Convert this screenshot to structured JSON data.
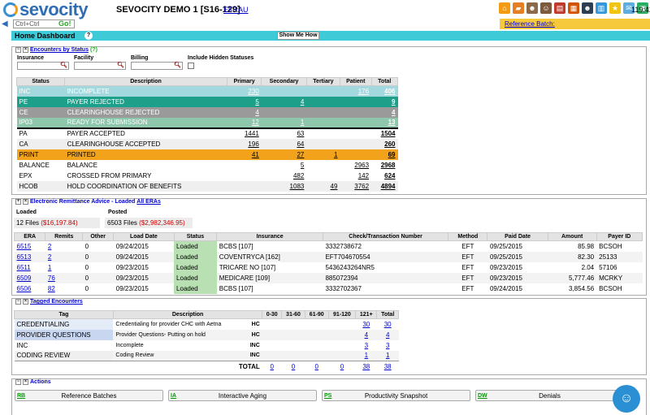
{
  "app": {
    "logo": "sevocity",
    "company": "SEVOCITY DEMO 1 [S16-129]",
    "user_link": "EFRAU",
    "clock": "119:42"
  },
  "search": {
    "value": "Ctrl+Ctrl",
    "go": "Go!"
  },
  "ref_batch": "Reference Batch:",
  "header": {
    "title": "Home Dashboard",
    "help": "?",
    "show_me": "Show Me How"
  },
  "encounters": {
    "title": "Encounters by Status",
    "help": "(?)",
    "filters": {
      "insurance": "Insurance",
      "facility": "Facility",
      "billing": "Billing",
      "hidden": "Include Hidden Statuses"
    },
    "columns": [
      "Status",
      "Description",
      "Primary",
      "Secondary",
      "Tertiary",
      "Patient",
      "Total"
    ],
    "rows": [
      {
        "status": "INC",
        "desc": "INCOMPLETE",
        "primary": "230",
        "secondary": "",
        "tertiary": "",
        "patient": "176",
        "total": "406",
        "bg": "#a3d9de",
        "fg": "#fff"
      },
      {
        "status": "PE",
        "desc": "PAYER REJECTED",
        "primary": "5",
        "secondary": "4",
        "tertiary": "",
        "patient": "",
        "total": "9",
        "bg": "#1e9f8a",
        "fg": "#fff"
      },
      {
        "status": "CE",
        "desc": "CLEARINGHOUSE REJECTED",
        "primary": "4",
        "secondary": "",
        "tertiary": "",
        "patient": "",
        "total": "4",
        "bg": "#9a9a9a",
        "fg": "#fff"
      },
      {
        "status": "IP03",
        "desc": "READY FOR SUBMISSION",
        "primary": "12",
        "secondary": "1",
        "tertiary": "",
        "patient": "",
        "total": "13",
        "bg": "#8fc7ad",
        "fg": "#fff"
      },
      {
        "status": "PA",
        "desc": "PAYER ACCEPTED",
        "primary": "1441",
        "secondary": "63",
        "tertiary": "",
        "patient": "",
        "total": "1504",
        "bg": "#fff",
        "fg": "#000"
      },
      {
        "status": "CA",
        "desc": "CLEARINGHOUSE ACCEPTED",
        "primary": "196",
        "secondary": "64",
        "tertiary": "",
        "patient": "",
        "total": "260",
        "bg": "#efefef",
        "fg": "#000"
      },
      {
        "status": "PRINT",
        "desc": "PRINTED",
        "primary": "41",
        "secondary": "27",
        "tertiary": "1",
        "patient": "",
        "total": "69",
        "bg": "#f2a31b",
        "fg": "#000"
      },
      {
        "status": "BALANCE",
        "desc": "BALANCE",
        "primary": "",
        "secondary": "5",
        "tertiary": "",
        "patient": "2963",
        "total": "2968",
        "bg": "#fff",
        "fg": "#000"
      },
      {
        "status": "EPX",
        "desc": "CROSSED FROM PRIMARY",
        "primary": "",
        "secondary": "482",
        "tertiary": "",
        "patient": "142",
        "total": "624",
        "bg": "#fff",
        "fg": "#000"
      },
      {
        "status": "HCOB",
        "desc": "HOLD COORDINATION OF BENEFITS",
        "primary": "",
        "secondary": "1083",
        "tertiary": "49",
        "patient": "3762",
        "total": "4894",
        "bg": "#efefef",
        "fg": "#000"
      }
    ]
  },
  "era": {
    "title": "Electronic Remittance Advice - Loaded",
    "all_link": "All ERAs",
    "loaded_label": "Loaded",
    "posted_label": "Posted",
    "loaded_files": "12 Files",
    "loaded_amount": "($16,197.84)",
    "posted_files": "6503 Files",
    "posted_amount": "($2,982,346.95)",
    "columns": [
      "ERA",
      "Remits",
      "Other",
      "Load Date",
      "Status",
      "Insurance",
      "Check/Transaction Number",
      "Method",
      "Paid Date",
      "Amount",
      "Payer ID"
    ],
    "rows": [
      {
        "era": "6515",
        "remits": "2",
        "other": "0",
        "load": "09/24/2015",
        "status": "Loaded",
        "ins": "BCBS [107]",
        "check": "3332738672",
        "method": "EFT",
        "paid": "09/25/2015",
        "amount": "85.98",
        "payer": "BCSOH"
      },
      {
        "era": "6513",
        "remits": "2",
        "other": "0",
        "load": "09/24/2015",
        "status": "Loaded",
        "ins": "COVENTRYCA [162]",
        "check": "EFT704670554",
        "method": "EFT",
        "paid": "09/25/2015",
        "amount": "82.30",
        "payer": "25133"
      },
      {
        "era": "6511",
        "remits": "1",
        "other": "0",
        "load": "09/23/2015",
        "status": "Loaded",
        "ins": "TRICARE NO [107]",
        "check": "5436243264NR5",
        "method": "EFT",
        "paid": "09/23/2015",
        "amount": "2.04",
        "payer": "57106"
      },
      {
        "era": "6509",
        "remits": "76",
        "other": "0",
        "load": "09/23/2015",
        "status": "Loaded",
        "ins": "MEDICARE [109]",
        "check": "885072394",
        "method": "EFT",
        "paid": "09/23/2015",
        "amount": "5,777.46",
        "payer": "MCRKY"
      },
      {
        "era": "6506",
        "remits": "82",
        "other": "0",
        "load": "09/23/2015",
        "status": "Loaded",
        "ins": "BCBS [107]",
        "check": "3332702367",
        "method": "EFT",
        "paid": "09/24/2015",
        "amount": "3,854.56",
        "payer": "BCSOH"
      }
    ]
  },
  "tagged": {
    "title": "Tagged Encounters",
    "columns": [
      "Tag",
      "Description",
      "0-30",
      "31-60",
      "61-90",
      "91-120",
      "121+",
      "Total"
    ],
    "rows": [
      {
        "tag": "CREDENTIALING",
        "desc": "Credentialing for provider CHC with Aetna",
        "code": "HC",
        "b0": "",
        "b1": "",
        "b2": "",
        "b3": "",
        "b4": "30",
        "total": "30",
        "bg": "#e4ecf7"
      },
      {
        "tag": "PROVIDER QUESTIONS",
        "desc": "Provider Questions- Putting on hold",
        "code": "HC",
        "b0": "",
        "b1": "",
        "b2": "",
        "b3": "",
        "b4": "4",
        "total": "4",
        "bg": "#c8d6f0"
      },
      {
        "tag": "INC",
        "desc": "Incomplete",
        "code": "INC",
        "b0": "",
        "b1": "",
        "b2": "",
        "b3": "",
        "b4": "3",
        "total": "3",
        "bg": "#fff"
      },
      {
        "tag": "CODING REVIEW",
        "desc": "Coding Review",
        "code": "INC",
        "b0": "",
        "b1": "",
        "b2": "",
        "b3": "",
        "b4": "1",
        "total": "1",
        "bg": "#efefef"
      }
    ],
    "total_row": {
      "label": "TOTAL",
      "b0": "0",
      "b1": "0",
      "b2": "0",
      "b3": "0",
      "b4": "38",
      "total": "38"
    }
  },
  "actions": {
    "title": "Actions",
    "buttons": [
      {
        "code": "RB",
        "label": "Reference Batches"
      },
      {
        "code": "IA",
        "label": "Interactive Aging"
      },
      {
        "code": "PS",
        "label": "Productivity Snapshot"
      },
      {
        "code": "DW",
        "label": "Denials"
      }
    ]
  },
  "colors": {
    "header_teal": "#3fcad8",
    "ref_batch_yellow": "#f6c83c",
    "era_loaded_green": "#b9e0b3",
    "brand_blue": "#2f6db5"
  },
  "icons": [
    "home-icon",
    "folder-icon",
    "user-icon",
    "user-icon",
    "document-icon",
    "calendar-icon",
    "people-icon",
    "chart-icon",
    "star-icon",
    "mail-icon",
    "sms-icon",
    "exit-icon"
  ]
}
